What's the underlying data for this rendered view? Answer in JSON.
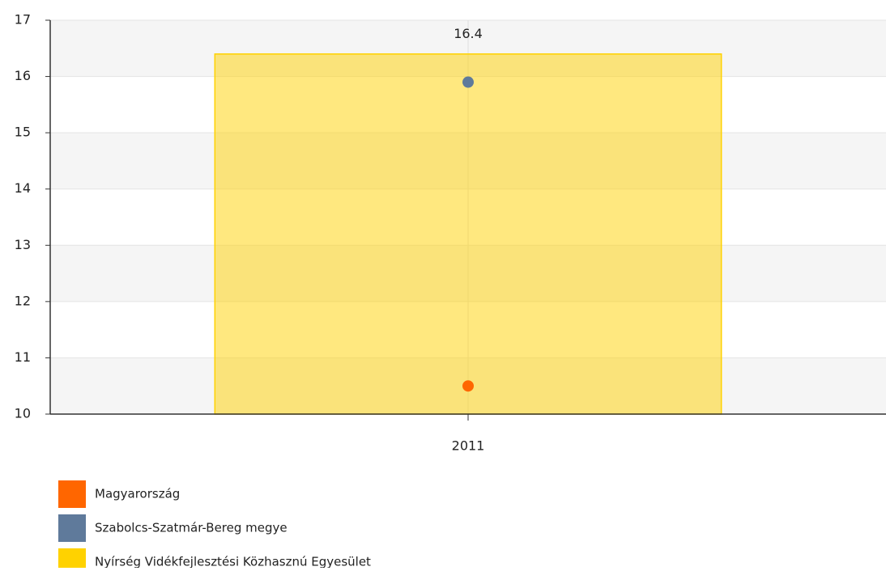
{
  "chart_data": {
    "type": "bar",
    "categories": [
      "2011"
    ],
    "series": [
      {
        "name": "Magyarország",
        "color": "#ff6600",
        "type": "scatter",
        "values": [
          10.5
        ]
      },
      {
        "name": "Szabolcs-Szatmár-Bereg megye",
        "color": "#5f7a9b",
        "type": "scatter",
        "values": [
          15.9
        ]
      },
      {
        "name": "Nyírség Vidékfejlesztési Közhasznú Egyesület",
        "color": "#ffd200",
        "type": "bar",
        "values": [
          16.4
        ]
      }
    ],
    "ylim": [
      10,
      17
    ],
    "yticks": [
      10,
      11,
      12,
      13,
      14,
      15,
      16,
      17
    ],
    "grid": true,
    "legend": "bottom"
  }
}
